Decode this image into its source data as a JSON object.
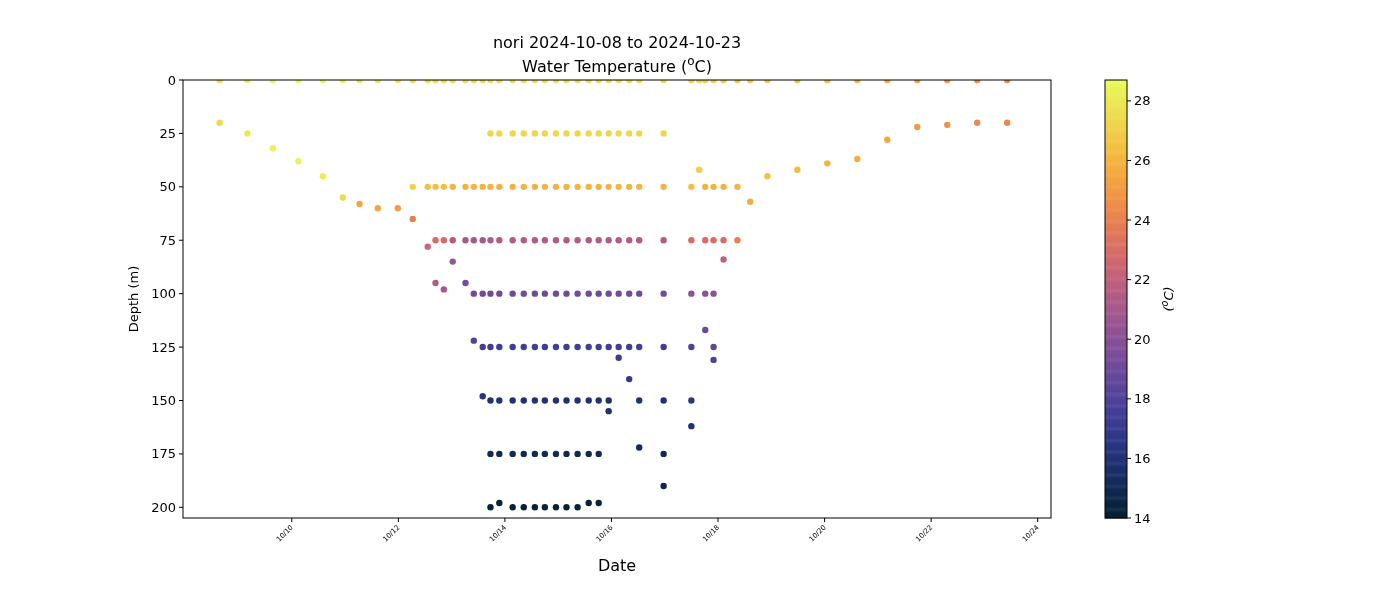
{
  "chart_data": {
    "type": "scatter",
    "title": "nori 2024-10-08 to 2024-10-23",
    "subtitle": "Water Temperature ($^{o}$C)",
    "xlabel": "Date",
    "ylabel": "Depth (m)",
    "clabel": "($^{o}$C)",
    "marker": "circle",
    "xlim": [
      "2024-10-07T23:00",
      "2024-10-24T06:00"
    ],
    "xticks": [
      {
        "value": "2024-10-10",
        "label": "10/10"
      },
      {
        "value": "2024-10-12",
        "label": "10/12"
      },
      {
        "value": "2024-10-14",
        "label": "10/14"
      },
      {
        "value": "2024-10-16",
        "label": "10/16"
      },
      {
        "value": "2024-10-18",
        "label": "10/18"
      },
      {
        "value": "2024-10-20",
        "label": "10/20"
      },
      {
        "value": "2024-10-22",
        "label": "10/22"
      },
      {
        "value": "2024-10-24",
        "label": "10/24"
      }
    ],
    "ylim": [
      205,
      0
    ],
    "yticks": [
      0,
      25,
      50,
      75,
      100,
      125,
      150,
      175,
      200
    ],
    "clim": [
      14,
      28.7
    ],
    "cticks": [
      14,
      16,
      18,
      20,
      22,
      24,
      26,
      28
    ],
    "x": [
      "2024-10-08T15:30",
      "2024-10-08T15:30",
      "2024-10-09T04:00",
      "2024-10-09T04:00",
      "2024-10-09T15:30",
      "2024-10-09T15:30",
      "2024-10-10T03:00",
      "2024-10-10T03:00",
      "2024-10-10T14:00",
      "2024-10-10T14:00",
      "2024-10-10T23:00",
      "2024-10-10T23:00",
      "2024-10-11T06:30",
      "2024-10-11T06:30",
      "2024-10-11T14:45",
      "2024-10-11T14:45",
      "2024-10-11T23:45",
      "2024-10-11T23:45",
      "2024-10-12T06:30",
      "2024-10-12T06:30",
      "2024-10-12T06:30",
      "2024-10-12T13:15",
      "2024-10-12T13:15",
      "2024-10-12T13:15",
      "2024-10-12T16:45",
      "2024-10-12T16:45",
      "2024-10-12T16:45",
      "2024-10-12T16:45",
      "2024-10-12T20:30",
      "2024-10-12T20:30",
      "2024-10-12T20:30",
      "2024-10-12T20:30",
      "2024-10-13T00:30",
      "2024-10-13T00:30",
      "2024-10-13T00:30",
      "2024-10-13T00:30",
      "2024-10-13T06:15",
      "2024-10-13T06:15",
      "2024-10-13T06:15",
      "2024-10-13T06:15",
      "2024-10-13T10:00",
      "2024-10-13T10:00",
      "2024-10-13T10:00",
      "2024-10-13T10:00",
      "2024-10-13T10:00",
      "2024-10-13T14:00",
      "2024-10-13T14:00",
      "2024-10-13T14:00",
      "2024-10-13T14:00",
      "2024-10-13T14:00",
      "2024-10-13T14:00",
      "2024-10-13T17:30",
      "2024-10-13T17:30",
      "2024-10-13T17:30",
      "2024-10-13T17:30",
      "2024-10-13T17:30",
      "2024-10-13T17:30",
      "2024-10-13T17:30",
      "2024-10-13T17:30",
      "2024-10-13T17:30",
      "2024-10-13T21:30",
      "2024-10-13T21:30",
      "2024-10-13T21:30",
      "2024-10-13T21:30",
      "2024-10-13T21:30",
      "2024-10-13T21:30",
      "2024-10-13T21:30",
      "2024-10-13T21:30",
      "2024-10-13T21:30",
      "2024-10-14T03:30",
      "2024-10-14T03:30",
      "2024-10-14T03:30",
      "2024-10-14T03:30",
      "2024-10-14T03:30",
      "2024-10-14T03:30",
      "2024-10-14T03:30",
      "2024-10-14T03:30",
      "2024-10-14T03:30",
      "2024-10-14T08:30",
      "2024-10-14T08:30",
      "2024-10-14T08:30",
      "2024-10-14T08:30",
      "2024-10-14T08:30",
      "2024-10-14T08:30",
      "2024-10-14T08:30",
      "2024-10-14T08:30",
      "2024-10-14T08:30",
      "2024-10-14T13:30",
      "2024-10-14T13:30",
      "2024-10-14T13:30",
      "2024-10-14T13:30",
      "2024-10-14T13:30",
      "2024-10-14T13:30",
      "2024-10-14T13:30",
      "2024-10-14T13:30",
      "2024-10-14T13:30",
      "2024-10-14T18:00",
      "2024-10-14T18:00",
      "2024-10-14T18:00",
      "2024-10-14T18:00",
      "2024-10-14T18:00",
      "2024-10-14T18:00",
      "2024-10-14T18:00",
      "2024-10-14T18:00",
      "2024-10-14T18:00",
      "2024-10-14T23:00",
      "2024-10-14T23:00",
      "2024-10-14T23:00",
      "2024-10-14T23:00",
      "2024-10-14T23:00",
      "2024-10-14T23:00",
      "2024-10-14T23:00",
      "2024-10-14T23:00",
      "2024-10-14T23:00",
      "2024-10-15T03:45",
      "2024-10-15T03:45",
      "2024-10-15T03:45",
      "2024-10-15T03:45",
      "2024-10-15T03:45",
      "2024-10-15T03:45",
      "2024-10-15T03:45",
      "2024-10-15T03:45",
      "2024-10-15T03:45",
      "2024-10-15T08:45",
      "2024-10-15T08:45",
      "2024-10-15T08:45",
      "2024-10-15T08:45",
      "2024-10-15T08:45",
      "2024-10-15T08:45",
      "2024-10-15T08:45",
      "2024-10-15T08:45",
      "2024-10-15T08:45",
      "2024-10-15T13:45",
      "2024-10-15T13:45",
      "2024-10-15T13:45",
      "2024-10-15T13:45",
      "2024-10-15T13:45",
      "2024-10-15T13:45",
      "2024-10-15T13:45",
      "2024-10-15T13:45",
      "2024-10-15T13:45",
      "2024-10-15T18:15",
      "2024-10-15T18:15",
      "2024-10-15T18:15",
      "2024-10-15T18:15",
      "2024-10-15T18:15",
      "2024-10-15T18:15",
      "2024-10-15T18:15",
      "2024-10-15T18:15",
      "2024-10-15T18:15",
      "2024-10-15T22:45",
      "2024-10-15T22:45",
      "2024-10-15T22:45",
      "2024-10-15T22:45",
      "2024-10-15T22:45",
      "2024-10-15T22:45",
      "2024-10-15T22:45",
      "2024-10-15T22:45",
      "2024-10-16T03:15",
      "2024-10-16T03:15",
      "2024-10-16T03:15",
      "2024-10-16T03:15",
      "2024-10-16T03:15",
      "2024-10-16T03:15",
      "2024-10-16T03:15",
      "2024-10-16T08:00",
      "2024-10-16T08:00",
      "2024-10-16T08:00",
      "2024-10-16T08:00",
      "2024-10-16T08:00",
      "2024-10-16T08:00",
      "2024-10-16T08:00",
      "2024-10-16T12:30",
      "2024-10-16T12:30",
      "2024-10-16T12:30",
      "2024-10-16T12:30",
      "2024-10-16T12:30",
      "2024-10-16T12:30",
      "2024-10-16T12:30",
      "2024-10-16T12:30",
      "2024-10-16T23:30",
      "2024-10-16T23:30",
      "2024-10-16T23:30",
      "2024-10-16T23:30",
      "2024-10-16T23:30",
      "2024-10-16T23:30",
      "2024-10-16T23:30",
      "2024-10-16T23:30",
      "2024-10-16T23:30",
      "2024-10-17T12:00",
      "2024-10-17T12:00",
      "2024-10-17T12:00",
      "2024-10-17T12:00",
      "2024-10-17T12:00",
      "2024-10-17T12:00",
      "2024-10-17T12:00",
      "2024-10-17T15:30",
      "2024-10-17T15:30",
      "2024-10-17T18:15",
      "2024-10-17T18:15",
      "2024-10-17T18:15",
      "2024-10-17T18:15",
      "2024-10-17T18:15",
      "2024-10-17T22:00",
      "2024-10-17T22:00",
      "2024-10-17T22:00",
      "2024-10-17T22:00",
      "2024-10-17T22:00",
      "2024-10-17T22:00",
      "2024-10-18T02:30",
      "2024-10-18T02:30",
      "2024-10-18T02:30",
      "2024-10-18T02:30",
      "2024-10-18T08:45",
      "2024-10-18T08:45",
      "2024-10-18T08:45",
      "2024-10-18T14:30",
      "2024-10-18T14:30",
      "2024-10-18T22:15",
      "2024-10-18T22:15",
      "2024-10-19T11:45",
      "2024-10-19T11:45",
      "2024-10-20T01:15",
      "2024-10-20T01:15",
      "2024-10-20T14:45",
      "2024-10-20T14:45",
      "2024-10-21T04:15",
      "2024-10-21T04:15",
      "2024-10-21T17:45",
      "2024-10-21T17:45",
      "2024-10-22T07:15",
      "2024-10-22T07:15",
      "2024-10-22T20:45",
      "2024-10-22T20:45",
      "2024-10-23T10:15",
      "2024-10-23T10:15"
    ],
    "values": [
      0,
      20,
      0,
      25,
      0,
      32,
      0,
      38,
      0,
      45,
      0,
      55,
      0,
      58,
      0,
      60,
      0,
      60,
      0,
      50,
      65,
      0,
      50,
      78,
      0,
      50,
      75,
      95,
      0,
      50,
      75,
      98,
      0,
      50,
      75,
      85,
      0,
      50,
      75,
      95,
      0,
      50,
      75,
      100,
      122,
      0,
      50,
      75,
      100,
      125,
      148,
      0,
      25,
      50,
      75,
      100,
      125,
      150,
      175,
      200,
      0,
      25,
      50,
      75,
      100,
      125,
      150,
      175,
      198,
      0,
      25,
      50,
      75,
      100,
      125,
      150,
      175,
      200,
      0,
      25,
      50,
      75,
      100,
      125,
      150,
      175,
      200,
      0,
      25,
      50,
      75,
      100,
      125,
      150,
      175,
      200,
      0,
      25,
      50,
      75,
      100,
      125,
      150,
      175,
      200,
      0,
      25,
      50,
      75,
      100,
      125,
      150,
      175,
      200,
      0,
      25,
      50,
      75,
      100,
      125,
      150,
      175,
      200,
      0,
      25,
      50,
      75,
      100,
      125,
      150,
      175,
      200,
      0,
      25,
      50,
      75,
      100,
      125,
      150,
      175,
      198,
      0,
      25,
      50,
      75,
      100,
      125,
      150,
      175,
      198,
      0,
      25,
      50,
      75,
      100,
      125,
      150,
      155,
      0,
      25,
      50,
      75,
      100,
      125,
      130,
      0,
      25,
      50,
      75,
      100,
      125,
      140,
      0,
      25,
      50,
      75,
      100,
      125,
      150,
      172,
      0,
      25,
      50,
      75,
      100,
      125,
      150,
      175,
      190,
      0,
      50,
      75,
      100,
      125,
      150,
      162,
      0,
      42,
      0,
      50,
      75,
      100,
      117,
      0,
      50,
      75,
      100,
      125,
      131,
      0,
      50,
      75,
      84,
      0,
      50,
      75,
      0,
      57,
      0,
      45,
      0,
      42,
      0,
      39,
      0,
      37,
      0,
      28,
      0,
      22,
      0,
      21,
      0,
      20,
      0,
      20
    ],
    "cvalues": [
      27.5,
      27.3,
      28.2,
      28,
      28.5,
      28.3,
      28.6,
      28.4,
      28.5,
      28.2,
      28.3,
      27.5,
      28,
      25.5,
      28,
      25.5,
      28,
      25.2,
      27.5,
      27.2,
      24,
      27.5,
      26.5,
      22.5,
      27.5,
      26.5,
      23,
      21.5,
      27.5,
      26.5,
      23,
      21,
      27.5,
      26,
      21.5,
      20.5,
      27.5,
      26,
      21,
      19.5,
      27.5,
      26,
      21,
      19.1,
      18,
      27.5,
      26,
      21,
      19.1,
      17.5,
      16.5,
      27.5,
      27.3,
      26,
      21.5,
      19.1,
      17.5,
      16,
      15,
      14.3,
      27.5,
      27.3,
      26,
      21.5,
      19.1,
      17.5,
      16,
      15,
      14.3,
      27.5,
      27.3,
      26,
      21.5,
      19.1,
      17.5,
      16,
      15,
      14.3,
      27.5,
      27.3,
      26,
      21.5,
      19.1,
      17.5,
      16,
      15,
      14.3,
      27.5,
      27.3,
      26,
      21.5,
      19.1,
      17.5,
      16,
      15,
      14.3,
      27.5,
      27.3,
      26,
      21.5,
      19.1,
      17.5,
      16,
      15,
      14.3,
      27.5,
      27.3,
      26,
      21.5,
      19.1,
      17.5,
      16,
      15,
      14.3,
      27.5,
      27.3,
      26,
      21.5,
      19.1,
      17.5,
      16,
      15,
      14.3,
      27.5,
      27.3,
      26,
      21.5,
      19.1,
      17.5,
      16,
      15,
      14.3,
      27.5,
      27.3,
      26,
      21.5,
      19.1,
      17.5,
      16,
      15,
      14.3,
      27.5,
      27.3,
      26,
      21.5,
      19.1,
      17.5,
      16,
      15,
      14.3,
      27.5,
      27.3,
      26,
      21.5,
      19.1,
      17.5,
      16,
      15.8,
      27.5,
      27.3,
      26,
      21.5,
      19.1,
      17.5,
      17.2,
      27.5,
      27.3,
      26,
      21.5,
      19.1,
      17.5,
      16.8,
      27.5,
      27.3,
      26,
      21.5,
      19.1,
      17.5,
      16,
      15.2,
      27.5,
      27.3,
      26,
      21.5,
      19.1,
      17.5,
      16,
      15,
      14.6,
      27.3,
      26.5,
      23,
      20,
      18,
      16.5,
      16,
      27.3,
      27,
      27,
      26,
      23,
      20,
      19,
      27,
      26,
      23,
      20,
      18.5,
      18,
      27,
      26,
      23,
      22,
      26.8,
      26,
      24,
      26.8,
      25.8,
      26.8,
      26.5,
      26.5,
      26.3,
      26.2,
      26,
      26,
      25.8,
      25.6,
      25.5,
      25.2,
      25.1,
      24.8,
      24.7,
      24.5,
      24.4,
      24.4,
      24.3
    ]
  }
}
